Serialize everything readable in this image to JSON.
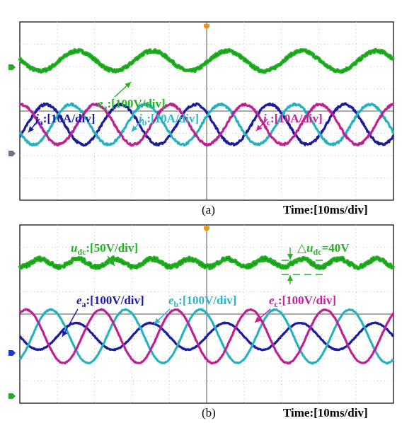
{
  "chart_data": [
    {
      "type": "line",
      "panel_label": "(a)",
      "time_scale": "Time:[10ms/div]",
      "divisions": 10,
      "series": [
        {
          "name_main": "e",
          "name_sub": "a",
          "unit": ":[100V/div]",
          "color": "#22b422",
          "amplitude_div": 0.45,
          "offset_div": 2.25,
          "phase_div": 1.05,
          "periods_per_div": 0.5,
          "noise": 0.06
        },
        {
          "name_main": "j",
          "name_sub": "a",
          "unit": ":[10A/div]",
          "color": "#1a1aa8",
          "amplitude_div": 0.9,
          "offset_div": -0.6,
          "phase_div": 0.2,
          "periods_per_div": 0.5,
          "noise": 0.05
        },
        {
          "name_main": "j",
          "name_sub": "b",
          "unit": ":[10A/div]",
          "color": "#2ab8c8",
          "amplitude_div": 0.9,
          "offset_div": -0.6,
          "phase_div": 0.87,
          "periods_per_div": 0.5,
          "noise": 0.05
        },
        {
          "name_main": "i",
          "name_sub": "c",
          "unit": ":[10A/div]",
          "color": "#c8209a",
          "amplitude_div": 0.9,
          "offset_div": -0.6,
          "phase_div": 1.53,
          "periods_per_div": 0.5,
          "noise": 0.05
        }
      ]
    },
    {
      "type": "line",
      "panel_label": "(b)",
      "time_scale": "Time:[10ms/div]",
      "divisions": 10,
      "annotation": {
        "symbol": "△",
        "name_main": "u",
        "name_sub": "dc",
        "text": "=40V"
      },
      "series": [
        {
          "name_main": "u",
          "name_sub": "dc",
          "unit": ":[50V/div]",
          "color": "#22b422",
          "amplitude_div": 0.18,
          "offset_div": 2.3,
          "phase_div": 0.3,
          "periods_per_div": 1.0,
          "noise": 0.08
        },
        {
          "name_main": "e",
          "name_sub": "a",
          "unit": ":[100V/div]",
          "color": "#1a1aa8",
          "amplitude_div": 0.6,
          "offset_div": -1.0,
          "phase_div": 1.0,
          "periods_per_div": 0.5,
          "noise": 0.02
        },
        {
          "name_main": "e",
          "name_sub": "b",
          "unit": ":[100V/div]",
          "color": "#2ab8c8",
          "amplitude_div": 1.2,
          "offset_div": -1.0,
          "phase_div": 0.33,
          "periods_per_div": 0.5,
          "noise": 0.02
        },
        {
          "name_main": "e",
          "name_sub": "c",
          "unit": ":[100V/div]",
          "color": "#c8209a",
          "amplitude_div": 1.2,
          "offset_div": -1.0,
          "phase_div": 1.67,
          "periods_per_div": 0.5,
          "noise": 0.02
        }
      ]
    }
  ]
}
